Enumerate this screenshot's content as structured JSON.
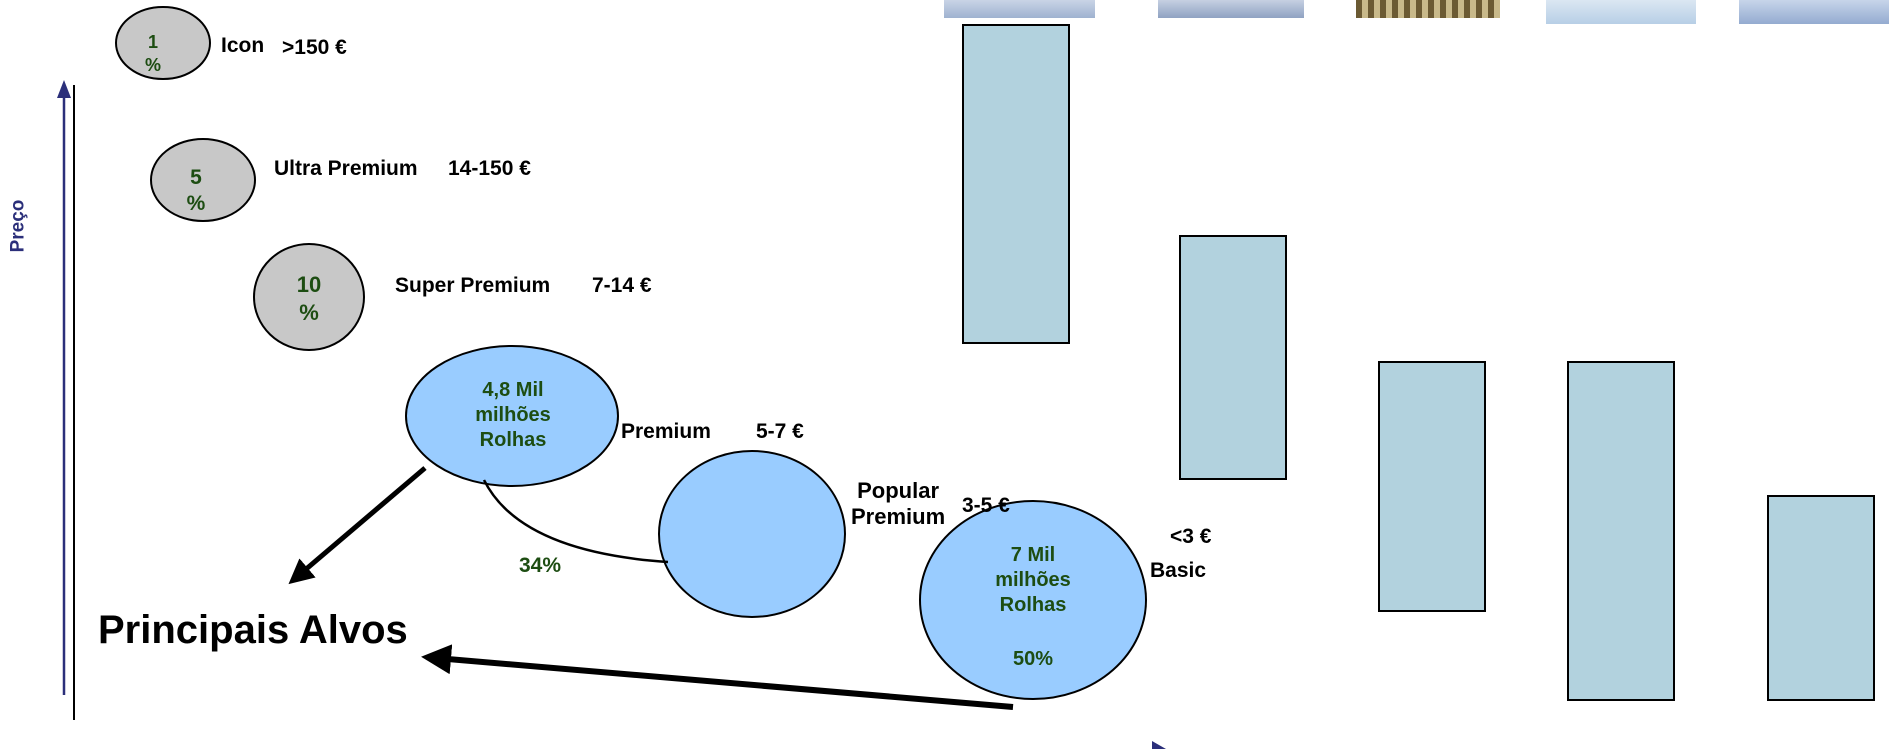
{
  "axis": {
    "y_label": "Preço"
  },
  "segments": [
    {
      "name": "Icon",
      "price": ">150 €",
      "share_line1": "1",
      "share_line2": "%"
    },
    {
      "name": "Ultra Premium",
      "price": "14-150 €",
      "share_line1": "5",
      "share_line2": "%"
    },
    {
      "name": "Super Premium",
      "price": "7-14 €",
      "share_line1": "10",
      "share_line2": "%"
    },
    {
      "name": "Premium",
      "price": "5-7 €",
      "volume_line1": "4,8 Mil",
      "volume_line2": "milhões",
      "volume_line3": "Rolhas"
    },
    {
      "name_line1": "Popular",
      "name_line2": "Premium",
      "price": "3-5 €"
    },
    {
      "name": "Basic",
      "price": "<3 €",
      "volume_line1": "7 Mil",
      "volume_line2": "milhões",
      "volume_line3": "Rolhas",
      "share": "50%"
    }
  ],
  "combined_share": "34%",
  "target_label": "Principais Alvos",
  "bars": [
    {
      "id": "bar-1",
      "relative_height": 1.0
    },
    {
      "id": "bar-2",
      "relative_height": 0.77
    },
    {
      "id": "bar-3",
      "relative_height": 0.79
    },
    {
      "id": "bar-4",
      "relative_height": 1.07
    },
    {
      "id": "bar-5",
      "relative_height": 0.65
    }
  ],
  "colors": {
    "grey_ellipse": "#c8c8c8",
    "blue_ellipse": "#99ccff",
    "bar_fill": "#b2d2de",
    "axis": "#2b2f7a",
    "share_text": "#1d4d12"
  }
}
